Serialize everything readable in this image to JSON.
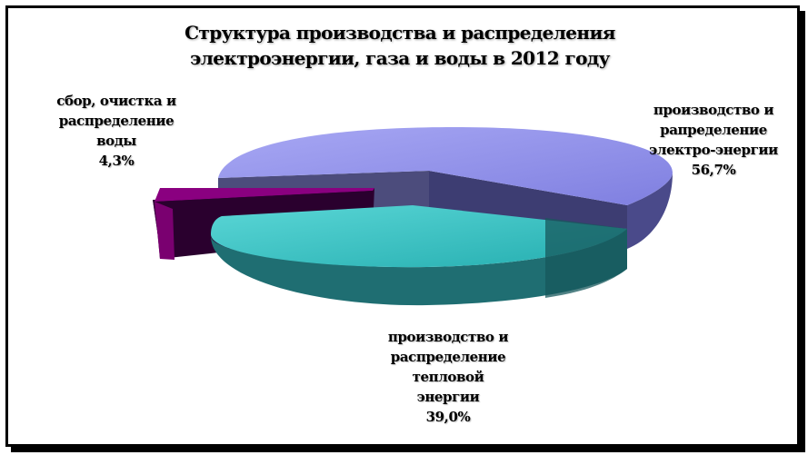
{
  "chart_data": {
    "type": "pie",
    "title": "Структура производства и распределения электроэнергии, газа и воды в 2012 году",
    "title_lines": [
      "Структура производства и распределения",
      "электроэнергии, газа и воды в 2012 году"
    ],
    "slices": [
      {
        "label_lines": [
          "производство и",
          "рапределение",
          "электро-энергии"
        ],
        "value": 56.7,
        "value_label": "56,7%",
        "color": "#9090e8",
        "exploded": false
      },
      {
        "label_lines": [
          "производство и",
          "распределение",
          "тепловой",
          "энергии"
        ],
        "value": 39.0,
        "value_label": "39,0%",
        "color": "#33c0c0",
        "exploded": true
      },
      {
        "label_lines": [
          "сбор, очистка и",
          "распределение",
          "воды"
        ],
        "value": 4.3,
        "value_label": "4,3%",
        "color": "#7a0070",
        "exploded": true
      }
    ],
    "style": "3d-exploded"
  }
}
